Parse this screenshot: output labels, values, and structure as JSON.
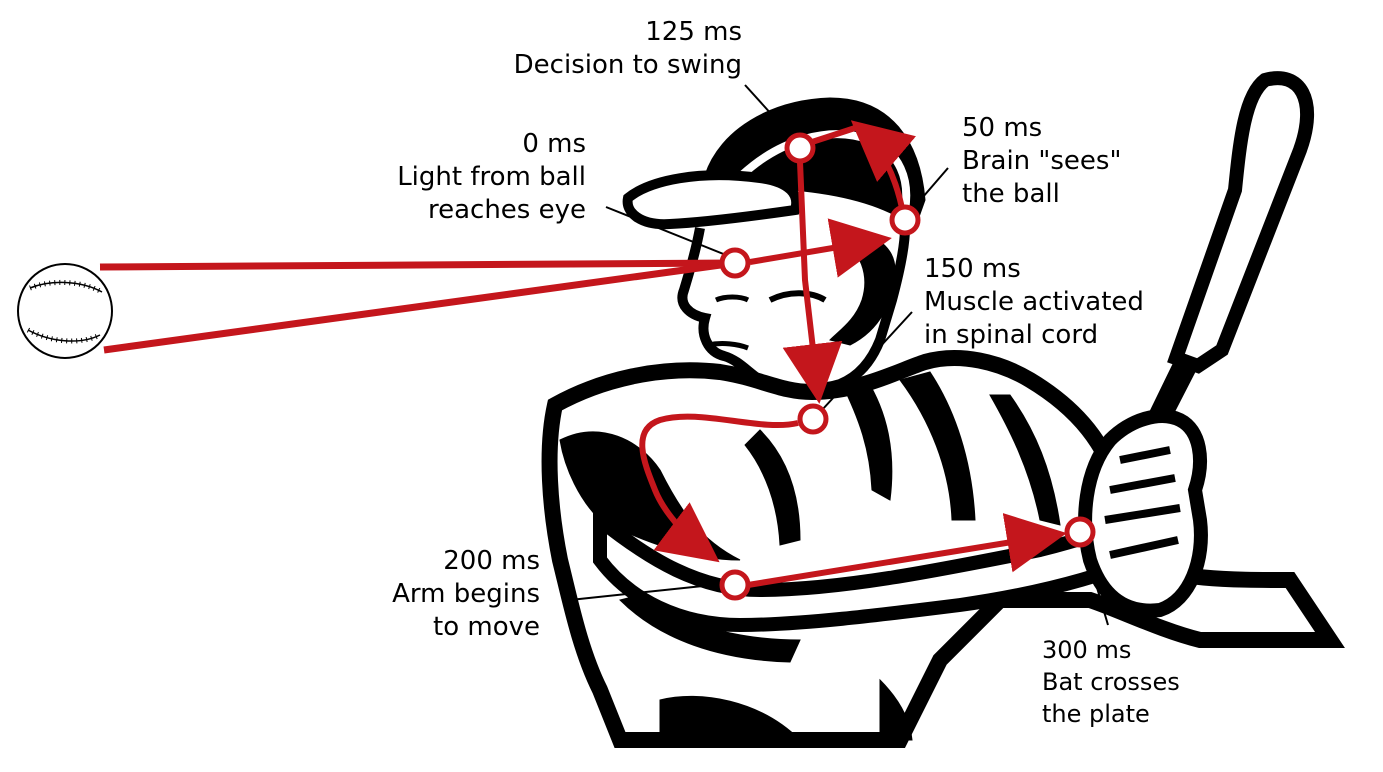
{
  "colors": {
    "signal_path": "#c4161c",
    "ink": "#000000",
    "background": "#ffffff"
  },
  "figure": {
    "subject": "baseball-batter-silhouette",
    "object": "baseball-icon"
  },
  "events": [
    {
      "id": "eye",
      "time": "0 ms",
      "lines": [
        "Light from ball",
        "reaches eye"
      ]
    },
    {
      "id": "brain",
      "time": "50 ms",
      "lines": [
        "Brain \"sees\"",
        "the ball"
      ]
    },
    {
      "id": "decision",
      "time": "125 ms",
      "lines": [
        "Decision to swing"
      ]
    },
    {
      "id": "spinal",
      "time": "150 ms",
      "lines": [
        "Muscle activated",
        "in spinal cord"
      ]
    },
    {
      "id": "arm",
      "time": "200 ms",
      "lines": [
        "Arm begins",
        "to move"
      ]
    },
    {
      "id": "bat",
      "time": "300 ms",
      "lines": [
        "Bat crosses",
        "the plate"
      ]
    }
  ]
}
